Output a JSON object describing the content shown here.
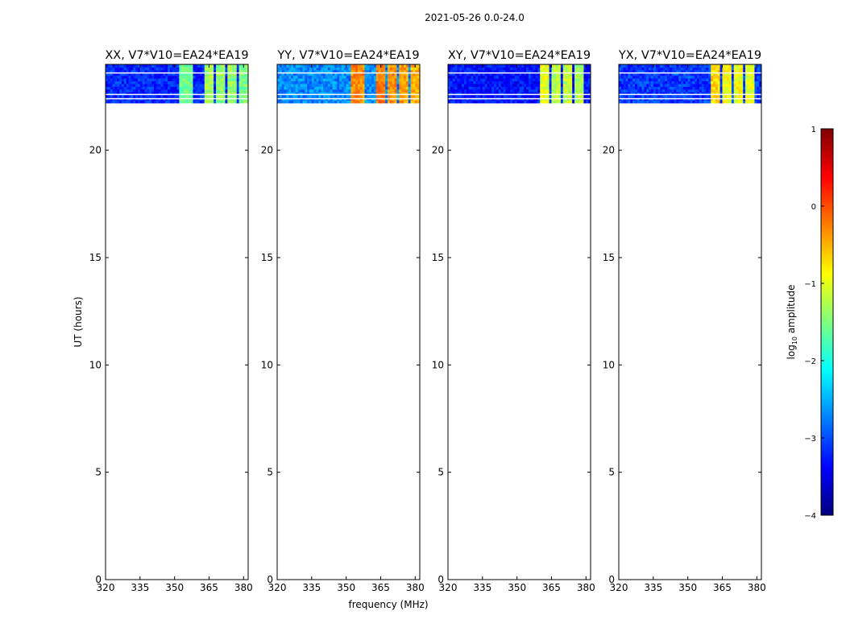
{
  "suptitle": "2021-05-26 0.0-24.0",
  "colors": {
    "panel_background": "#ffffff",
    "jet_scale": [
      "#00007f",
      "#0000ff",
      "#007fff",
      "#00ffff",
      "#7fff7f",
      "#ffff00",
      "#ff7f00",
      "#ff0000",
      "#7f0000"
    ]
  },
  "chart_data": [
    {
      "type": "heatmap",
      "title": "XX, V7*V10=EA24*EA19",
      "xlabel": "",
      "ylabel": "UT (hours)",
      "xlim": [
        320,
        382
      ],
      "ylim": [
        0,
        24
      ],
      "xticks": [
        320,
        335,
        350,
        365,
        380
      ],
      "yticks": [
        0,
        5,
        10,
        15,
        20
      ],
      "grid": false,
      "data_time_range": [
        22.2,
        24.0
      ],
      "background_log_amplitude": -3.2,
      "bands": [
        {
          "freq_range": [
            352,
            358
          ],
          "log_amplitude": -1.6
        },
        {
          "freq_range": [
            363,
            367
          ],
          "log_amplitude": -1.3
        },
        {
          "freq_range": [
            368,
            372
          ],
          "log_amplitude": -1.4
        },
        {
          "freq_range": [
            373,
            377
          ],
          "log_amplitude": -1.4
        },
        {
          "freq_range": [
            378,
            382
          ],
          "log_amplitude": -1.5
        }
      ],
      "flagged_times": [
        23.6,
        22.6,
        22.4
      ]
    },
    {
      "type": "heatmap",
      "title": "YY, V7*V10=EA24*EA19",
      "xlabel": "frequency (MHz)",
      "ylabel": "",
      "xlim": [
        320,
        382
      ],
      "ylim": [
        0,
        24
      ],
      "xticks": [
        320,
        335,
        350,
        365,
        380
      ],
      "yticks": [
        0,
        5,
        10,
        15,
        20
      ],
      "grid": false,
      "data_time_range": [
        22.2,
        24.0
      ],
      "background_log_amplitude": -2.7,
      "bands": [
        {
          "freq_range": [
            352,
            358
          ],
          "log_amplitude": -0.3
        },
        {
          "freq_range": [
            363,
            367
          ],
          "log_amplitude": -0.2
        },
        {
          "freq_range": [
            368,
            372
          ],
          "log_amplitude": -0.3
        },
        {
          "freq_range": [
            373,
            377
          ],
          "log_amplitude": -0.4
        },
        {
          "freq_range": [
            378,
            382
          ],
          "log_amplitude": -0.5
        }
      ],
      "flagged_times": [
        23.6,
        22.6,
        22.4
      ]
    },
    {
      "type": "heatmap",
      "title": "XY, V7*V10=EA24*EA19",
      "xlabel": "",
      "ylabel": "",
      "xlim": [
        320,
        382
      ],
      "ylim": [
        0,
        24
      ],
      "xticks": [
        320,
        335,
        350,
        365,
        380
      ],
      "yticks": [
        0,
        5,
        10,
        15,
        20
      ],
      "grid": false,
      "data_time_range": [
        22.2,
        24.0
      ],
      "background_log_amplitude": -3.3,
      "bands": [
        {
          "freq_range": [
            360,
            364
          ],
          "log_amplitude": -1.0
        },
        {
          "freq_range": [
            365,
            369
          ],
          "log_amplitude": -1.2
        },
        {
          "freq_range": [
            370,
            374
          ],
          "log_amplitude": -1.2
        },
        {
          "freq_range": [
            375,
            379
          ],
          "log_amplitude": -1.3
        }
      ],
      "flagged_times": [
        23.6,
        22.6,
        22.4
      ]
    },
    {
      "type": "heatmap",
      "title": "YX, V7*V10=EA24*EA19",
      "xlabel": "",
      "ylabel": "",
      "xlim": [
        320,
        382
      ],
      "ylim": [
        0,
        24
      ],
      "xticks": [
        320,
        335,
        350,
        365,
        380
      ],
      "yticks": [
        0,
        5,
        10,
        15,
        20
      ],
      "grid": false,
      "data_time_range": [
        22.2,
        24.0
      ],
      "background_log_amplitude": -3.1,
      "bands": [
        {
          "freq_range": [
            360,
            364
          ],
          "log_amplitude": -0.7
        },
        {
          "freq_range": [
            365,
            369
          ],
          "log_amplitude": -0.9
        },
        {
          "freq_range": [
            370,
            374
          ],
          "log_amplitude": -0.9
        },
        {
          "freq_range": [
            375,
            379
          ],
          "log_amplitude": -1.0
        }
      ],
      "flagged_times": [
        23.6,
        22.6,
        22.4
      ]
    }
  ],
  "colorbar": {
    "label_prefix": "log",
    "label_sub": "10",
    "label_suffix": " amplitude",
    "range": [
      -4,
      1
    ],
    "ticks": [
      1,
      0,
      -1,
      -2,
      -3,
      -4
    ],
    "tick_labels": [
      "1",
      "0",
      "−1",
      "−2",
      "−3",
      "−4"
    ]
  }
}
